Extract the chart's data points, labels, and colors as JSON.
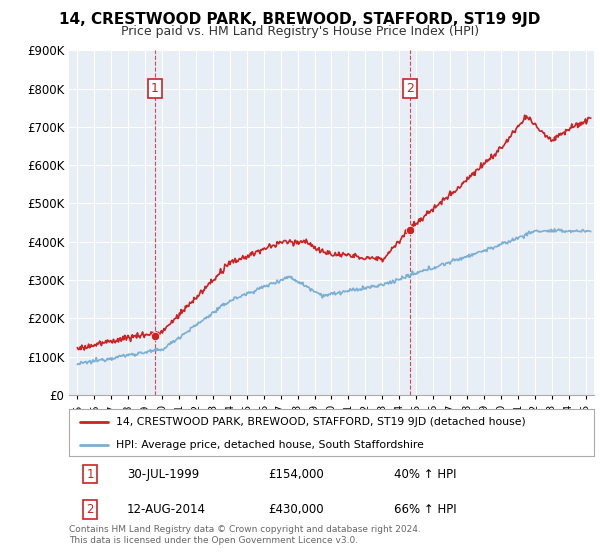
{
  "title": "14, CRESTWOOD PARK, BREWOOD, STAFFORD, ST19 9JD",
  "subtitle": "Price paid vs. HM Land Registry's House Price Index (HPI)",
  "ylim": [
    0,
    900000
  ],
  "yticks": [
    0,
    100000,
    200000,
    300000,
    400000,
    500000,
    600000,
    700000,
    800000,
    900000
  ],
  "xlim_start": 1994.5,
  "xlim_end": 2025.5,
  "hpi_color": "#7bafd4",
  "price_color": "#cc2222",
  "marker1_year": 1999.58,
  "marker1_price": 154000,
  "marker2_year": 2014.62,
  "marker2_price": 430000,
  "legend_label_price": "14, CRESTWOOD PARK, BREWOOD, STAFFORD, ST19 9JD (detached house)",
  "legend_label_hpi": "HPI: Average price, detached house, South Staffordshire",
  "annotation1_date": "30-JUL-1999",
  "annotation1_price": "£154,000",
  "annotation1_pct": "40% ↑ HPI",
  "annotation2_date": "12-AUG-2014",
  "annotation2_price": "£430,000",
  "annotation2_pct": "66% ↑ HPI",
  "footer": "Contains HM Land Registry data © Crown copyright and database right 2024.\nThis data is licensed under the Open Government Licence v3.0.",
  "vline1_x": 1999.58,
  "vline2_x": 2014.62,
  "plot_bg_color": "#e8eef5",
  "background_color": "#ffffff",
  "grid_color": "#ffffff"
}
